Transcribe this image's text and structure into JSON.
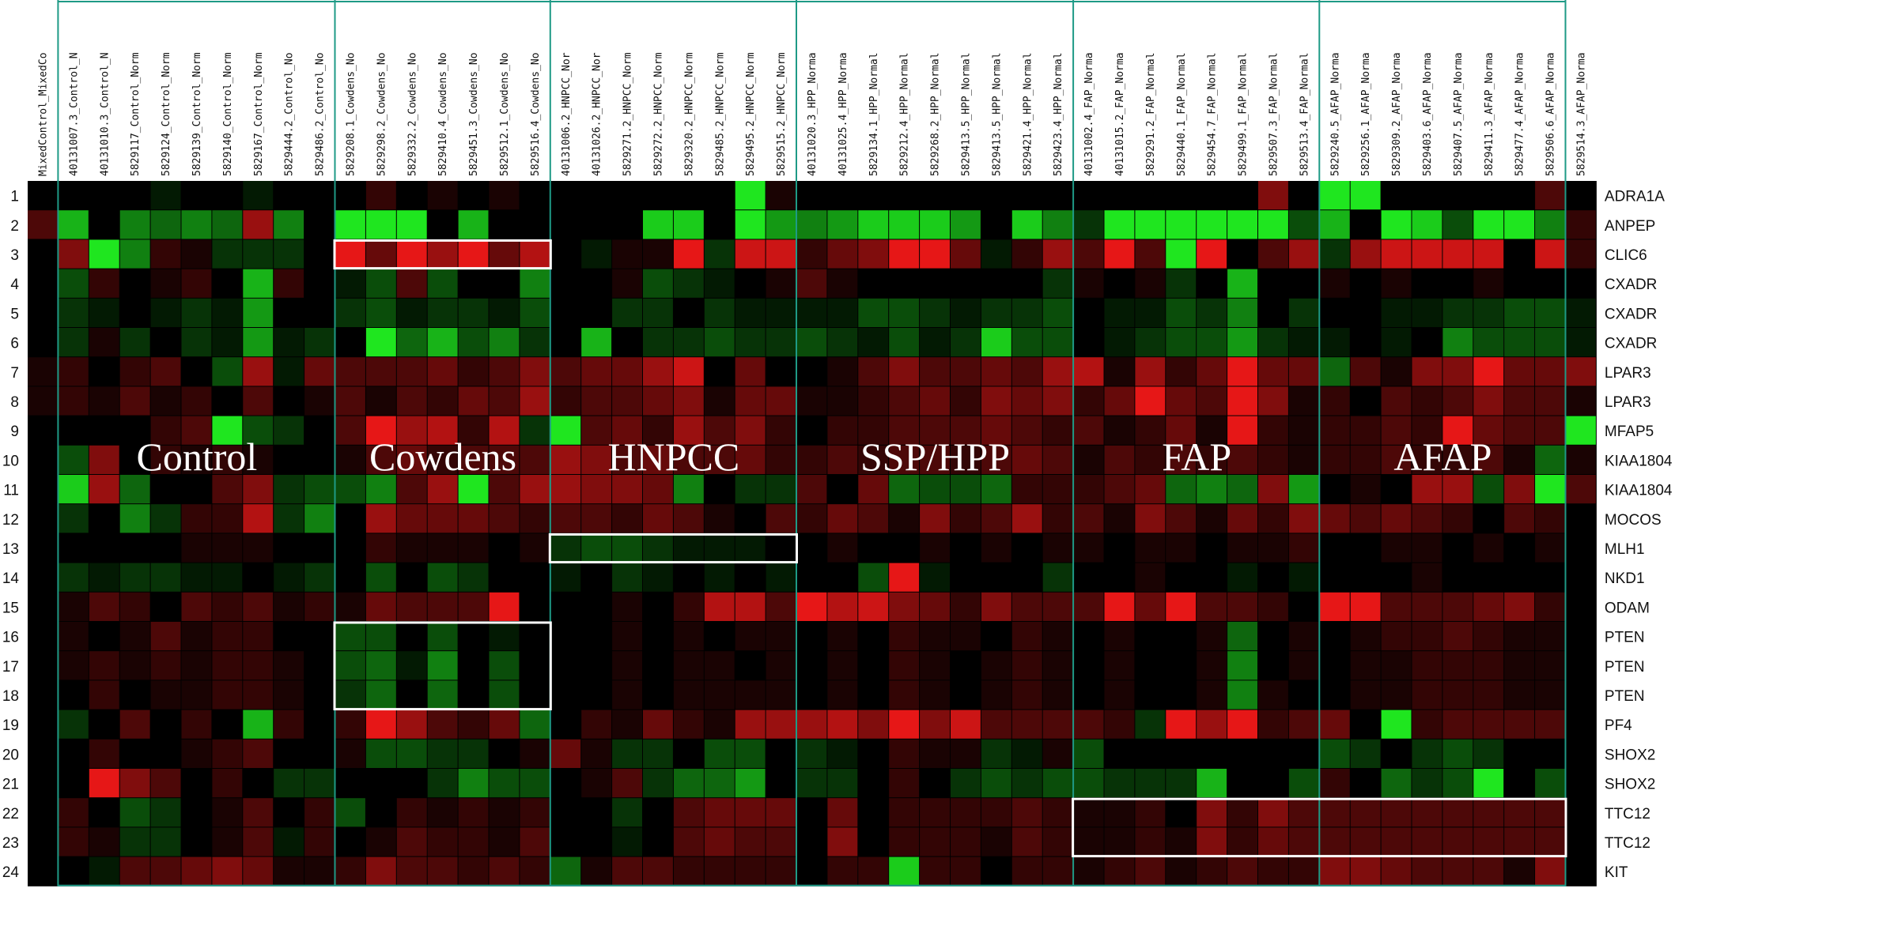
{
  "chart_data": {
    "type": "heatmap",
    "color_scale": {
      "low": "#22ff22",
      "mid": "#000000",
      "high": "#ff1a1a",
      "range": [
        -1,
        1
      ]
    },
    "columns": [
      "MixedControl_MixedCo",
      "40131007.3_Control_N",
      "40131010.3_Control_N",
      "5829117_Control_Norm",
      "5829124_Control_Norm",
      "5829139_Control_Norm",
      "5829140_Control_Norm",
      "5829167_Control_Norm",
      "5829444.2_Control_No",
      "5829486.2_Control_No",
      "5829208.1_Cowdens_No",
      "5829298.2_Cowdens_No",
      "5829332.2_Cowdens_No",
      "5829410.4_Cowdens_No",
      "5829451.3_Cowdens_No",
      "5829512.1_Cowdens_No",
      "5829516.4_Cowdens_No",
      "40131006.2_HNPCC_Nor",
      "40131026.2_HNPCC_Nor",
      "5829271.2_HNPCC_Norm",
      "5829272.2_HNPCC_Norm",
      "5829320.2_HNPCC_Norm",
      "5829485.2_HNPCC_Norm",
      "5829495.2_HNPCC_Norm",
      "5829515.2_HNPCC_Norm",
      "40131020.3_HPP_Norma",
      "40131025.4_HPP_Norma",
      "5829134.1_HPP_Normal",
      "5829212.4_HPP_Normal",
      "5829268.2_HPP_Normal",
      "5829413.5_HPP_Normal",
      "5829413.5_HPP_Normal",
      "5829421.4_HPP_Normal",
      "5829423.4_HPP_Normal",
      "40131002.4_FAP_Norma",
      "40131015.2_FAP_Norma",
      "5829291.2_FAP_Normal",
      "5829440.1_FAP_Normal",
      "5829454.7_FAP_Normal",
      "5829499.1_FAP_Normal",
      "5829507.3_FAP_Normal",
      "5829513.4_FAP_Normal",
      "5829240.5_AFAP_Norma",
      "5829256.1_AFAP_Norma",
      "5829309.2_AFAP_Norma",
      "5829403.6_AFAP_Norma",
      "5829407.5_AFAP_Norma",
      "5829411.3_AFAP_Norma",
      "5829477.4_AFAP_Norma",
      "5829506.6_AFAP_Norma",
      "5829514.3_AFAP_Norma"
    ],
    "row_numbers": [
      "1",
      "2",
      "3",
      "4",
      "5",
      "6",
      "7",
      "8",
      "9",
      "10",
      "11",
      "12",
      "13",
      "14",
      "15",
      "16",
      "17",
      "18",
      "19",
      "20",
      "21",
      "22",
      "23",
      "24"
    ],
    "genes": [
      "ADRA1A",
      "ANPEP",
      "CLIC6",
      "CXADR",
      "CXADR",
      "CXADR",
      "LPAR3",
      "LPAR3",
      "MFAP5",
      "KIAA1804",
      "KIAA1804",
      "MOCOS",
      "MLH1",
      "NKD1",
      "ODAM",
      "PTEN",
      "PTEN",
      "PTEN",
      "PF4",
      "SHOX2",
      "SHOX2",
      "TTC12",
      "TTC12",
      "KIT"
    ],
    "groups": [
      {
        "name": "Control",
        "start_col": 1,
        "end_col": 9
      },
      {
        "name": "Cowdens",
        "start_col": 10,
        "end_col": 16
      },
      {
        "name": "HNPCC",
        "start_col": 17,
        "end_col": 24
      },
      {
        "name": "SSP/HPP",
        "start_col": 25,
        "end_col": 33
      },
      {
        "name": "FAP",
        "start_col": 34,
        "end_col": 41
      },
      {
        "name": "AFAP",
        "start_col": 42,
        "end_col": 49
      }
    ],
    "highlights": [
      {
        "row_start": 3,
        "row_end": 3,
        "col_start": 10,
        "col_end": 16
      },
      {
        "row_start": 13,
        "row_end": 13,
        "col_start": 17,
        "col_end": 24
      },
      {
        "row_start": 16,
        "row_end": 18,
        "col_start": 10,
        "col_end": 16
      },
      {
        "row_start": 22,
        "row_end": 23,
        "col_start": 34,
        "col_end": 49
      }
    ],
    "values": [
      [
        0,
        0,
        0,
        0,
        -0.1,
        0,
        0,
        -0.1,
        0,
        0,
        0,
        0.2,
        0,
        0.1,
        0,
        0.1,
        0,
        0,
        0,
        0,
        0,
        0,
        0,
        -0.9,
        0.1,
        0,
        0,
        0,
        0,
        0,
        0,
        0,
        0,
        0,
        0,
        0,
        0,
        0,
        0,
        0,
        0.5,
        0,
        -0.9,
        -0.9,
        0,
        0,
        0,
        0,
        0,
        0.3,
        0
      ],
      [
        0.3,
        -0.7,
        0,
        -0.5,
        -0.4,
        -0.5,
        -0.4,
        0.6,
        -0.5,
        0,
        -0.9,
        -0.9,
        -0.9,
        0,
        -0.7,
        0,
        0,
        0,
        0,
        0,
        -0.8,
        -0.8,
        0,
        -0.9,
        -0.6,
        -0.5,
        -0.6,
        -0.8,
        -0.8,
        -0.8,
        -0.6,
        0,
        -0.8,
        -0.5,
        -0.2,
        -0.9,
        -0.9,
        -0.9,
        -0.9,
        -0.9,
        -0.9,
        -0.3,
        -0.7,
        0,
        -0.9,
        -0.8,
        -0.3,
        -0.9,
        -0.9,
        -0.5,
        0.2
      ],
      [
        0,
        0.5,
        -0.9,
        -0.5,
        0.2,
        0.1,
        -0.2,
        -0.2,
        -0.2,
        0,
        0.9,
        0.4,
        0.9,
        0.6,
        0.9,
        0.4,
        0.7,
        0,
        -0.1,
        0.1,
        0.1,
        0.9,
        -0.2,
        0.8,
        0.8,
        0.2,
        0.4,
        0.5,
        0.9,
        0.9,
        0.4,
        -0.1,
        0.2,
        0.6,
        0.3,
        0.9,
        0.3,
        -0.9,
        0.9,
        0,
        0.3,
        0.6,
        -0.2,
        0.6,
        0.8,
        0.8,
        0.8,
        0.8,
        0,
        0.8,
        0.2
      ],
      [
        0,
        -0.3,
        0.2,
        0,
        0.1,
        0.2,
        0,
        -0.7,
        0.2,
        0,
        -0.1,
        -0.3,
        0.3,
        -0.3,
        0,
        0,
        -0.5,
        0,
        0,
        0.1,
        -0.3,
        -0.2,
        -0.1,
        0,
        0.1,
        0.3,
        0.1,
        0,
        0,
        0,
        0,
        0,
        0,
        -0.2,
        0.1,
        0,
        0.1,
        -0.2,
        0,
        -0.7,
        0,
        0,
        0.1,
        0,
        0.1,
        0,
        0,
        0.1,
        0,
        0,
        0
      ],
      [
        0,
        -0.2,
        -0.1,
        0,
        -0.1,
        -0.2,
        -0.1,
        -0.6,
        0,
        0,
        -0.2,
        -0.3,
        -0.1,
        -0.2,
        -0.2,
        -0.1,
        -0.3,
        0,
        0,
        -0.2,
        -0.2,
        0,
        -0.2,
        -0.1,
        -0.1,
        -0.1,
        -0.1,
        -0.3,
        -0.3,
        -0.2,
        -0.1,
        -0.2,
        -0.2,
        -0.3,
        0,
        -0.1,
        -0.1,
        -0.3,
        -0.2,
        -0.5,
        0,
        -0.2,
        0,
        0,
        -0.1,
        -0.1,
        -0.2,
        -0.2,
        -0.3,
        -0.3,
        -0.1
      ],
      [
        0,
        -0.2,
        0.1,
        -0.2,
        0,
        -0.2,
        -0.1,
        -0.6,
        -0.1,
        -0.2,
        0,
        -0.9,
        -0.4,
        -0.7,
        -0.3,
        -0.5,
        -0.2,
        0,
        -0.7,
        0,
        -0.2,
        -0.2,
        -0.3,
        -0.2,
        -0.2,
        -0.3,
        -0.2,
        -0.1,
        -0.3,
        -0.1,
        -0.2,
        -0.8,
        -0.3,
        -0.3,
        0,
        -0.1,
        -0.2,
        -0.3,
        -0.3,
        -0.6,
        -0.2,
        -0.1,
        -0.1,
        0,
        -0.1,
        0,
        -0.5,
        -0.3,
        -0.3,
        -0.3,
        -0.1
      ],
      [
        0.1,
        0.2,
        0,
        0.2,
        0.3,
        0,
        -0.3,
        0.6,
        -0.1,
        0.4,
        0.3,
        0.3,
        0.3,
        0.4,
        0.2,
        0.3,
        0.5,
        0.3,
        0.4,
        0.4,
        0.6,
        0.8,
        0,
        0.4,
        0,
        0,
        0.1,
        0.3,
        0.5,
        0.3,
        0.3,
        0.4,
        0.3,
        0.6,
        0.7,
        0.1,
        0.6,
        0.2,
        0.4,
        0.9,
        0.4,
        0.4,
        -0.4,
        0.3,
        0.1,
        0.5,
        0.5,
        0.9,
        0.4,
        0.4,
        0.5
      ],
      [
        0.1,
        0.2,
        0.1,
        0.3,
        0.1,
        0.2,
        0,
        0.3,
        0,
        0.1,
        0.3,
        0.1,
        0.3,
        0.2,
        0.4,
        0.3,
        0.6,
        0.2,
        0.3,
        0.3,
        0.4,
        0.5,
        0.1,
        0.4,
        0.4,
        0.1,
        0.1,
        0.2,
        0.3,
        0.4,
        0.2,
        0.5,
        0.4,
        0.5,
        0.2,
        0.4,
        0.9,
        0.4,
        0.3,
        0.9,
        0.5,
        0.1,
        0.2,
        0,
        0.3,
        0.2,
        0.3,
        0.5,
        0.3,
        0.3,
        0.1
      ],
      [
        0,
        0,
        0,
        0,
        0.2,
        0.3,
        -0.9,
        -0.3,
        -0.2,
        0,
        0.3,
        0.9,
        0.6,
        0.7,
        0.2,
        0.7,
        -0.2,
        -0.9,
        0.3,
        0.4,
        0.2,
        0.6,
        0.3,
        0.5,
        0.2,
        0,
        0.2,
        0.2,
        0.3,
        0.3,
        0.3,
        0.4,
        0.3,
        0.2,
        0.3,
        0.1,
        0.2,
        0.4,
        0.1,
        0.9,
        0.2,
        0.1,
        0.2,
        0.2,
        0.3,
        0.2,
        0.9,
        0.4,
        0.3,
        0.3,
        -0.9
      ],
      [
        0,
        -0.3,
        0.5,
        0,
        0.2,
        0.1,
        0.2,
        0.1,
        0,
        0,
        0.1,
        0.3,
        0.4,
        0.2,
        0.3,
        0.3,
        0.3,
        0.6,
        0.5,
        0.3,
        0.4,
        0.3,
        0.3,
        0.4,
        0.2,
        0.2,
        0.3,
        0.2,
        0.3,
        0.3,
        0.2,
        0.3,
        0.4,
        0.3,
        0.1,
        0.3,
        0.2,
        0.3,
        0.2,
        0.3,
        0.2,
        0.1,
        0.2,
        0.2,
        0.3,
        0.2,
        0.2,
        0.3,
        0.1,
        -0.4,
        0.1
      ],
      [
        0,
        -0.8,
        0.6,
        -0.4,
        0,
        0,
        0.3,
        0.5,
        -0.2,
        -0.3,
        -0.3,
        -0.5,
        0.3,
        0.6,
        -0.9,
        0.3,
        0.6,
        0.6,
        0.5,
        0.5,
        0.4,
        -0.5,
        0,
        -0.2,
        -0.2,
        0.3,
        0,
        0.4,
        -0.4,
        -0.3,
        -0.3,
        -0.4,
        0.2,
        0.2,
        0.2,
        0.3,
        0.4,
        -0.4,
        -0.5,
        -0.4,
        0.5,
        -0.6,
        0,
        0.1,
        0,
        0.6,
        0.6,
        -0.3,
        0.5,
        -0.9,
        0.3
      ],
      [
        0,
        -0.2,
        0,
        -0.5,
        -0.2,
        0.2,
        0.2,
        0.7,
        -0.2,
        -0.5,
        0,
        0.6,
        0.4,
        0.4,
        0.4,
        0.3,
        0.2,
        0.3,
        0.3,
        0.2,
        0.4,
        0.3,
        0.1,
        0,
        0.3,
        0.2,
        0.4,
        0.3,
        0.1,
        0.5,
        0.2,
        0.3,
        0.6,
        0.2,
        0.3,
        0.1,
        0.5,
        0.3,
        0.1,
        0.4,
        0.2,
        0.5,
        0.4,
        0.3,
        0.4,
        0.3,
        0.2,
        0,
        0.3,
        0.2,
        0
      ],
      [
        0,
        0,
        0,
        0,
        0,
        0.1,
        0.1,
        0.1,
        0,
        0,
        0,
        0.2,
        0.1,
        0.1,
        0.1,
        0,
        0.1,
        -0.2,
        -0.3,
        -0.3,
        -0.2,
        -0.1,
        -0.1,
        -0.1,
        0,
        0,
        0.1,
        0,
        0,
        0.1,
        0,
        0.1,
        0,
        0.1,
        0.1,
        0,
        0.1,
        0.1,
        0,
        0.1,
        0.1,
        0.2,
        0,
        0,
        0.1,
        0.1,
        0,
        0.1,
        0,
        0.1,
        0
      ],
      [
        0,
        -0.2,
        -0.1,
        -0.2,
        -0.2,
        -0.1,
        -0.1,
        0,
        -0.1,
        -0.2,
        0,
        -0.3,
        0,
        -0.3,
        -0.2,
        0,
        0,
        -0.1,
        0,
        -0.2,
        -0.1,
        0,
        -0.1,
        0,
        -0.1,
        0,
        0,
        -0.3,
        0.9,
        -0.1,
        0,
        0,
        0,
        -0.2,
        0,
        0,
        0.1,
        0,
        0,
        -0.1,
        0,
        -0.1,
        0,
        0,
        0,
        0.1,
        0,
        0,
        0,
        0,
        0
      ],
      [
        0,
        0.1,
        0.3,
        0.2,
        0,
        0.3,
        0.2,
        0.3,
        0.1,
        0.2,
        0.1,
        0.4,
        0.3,
        0.3,
        0.3,
        0.9,
        0,
        0,
        0,
        0.1,
        0,
        0.2,
        0.7,
        0.7,
        0.3,
        0.9,
        0.7,
        0.8,
        0.5,
        0.4,
        0.2,
        0.5,
        0.3,
        0.3,
        0.3,
        0.9,
        0.4,
        0.9,
        0.3,
        0.3,
        0.2,
        0,
        0.9,
        0.9,
        0.3,
        0.3,
        0.3,
        0.4,
        0.5,
        0.2,
        0
      ],
      [
        0,
        0.1,
        0,
        0.1,
        0.3,
        0.1,
        0.2,
        0.2,
        0,
        0,
        -0.3,
        -0.3,
        0,
        -0.3,
        0,
        -0.1,
        0,
        0,
        0,
        0.1,
        0,
        0.1,
        0,
        0.1,
        0.1,
        0,
        0.1,
        0,
        0.2,
        0.1,
        0.1,
        0,
        0.2,
        0.1,
        0,
        0.1,
        0,
        0,
        0.1,
        -0.4,
        0,
        0.1,
        0,
        0.1,
        0.2,
        0.2,
        0.3,
        0.2,
        0.1,
        0.1,
        0
      ],
      [
        0,
        0.1,
        0.2,
        0.1,
        0.2,
        0.1,
        0.2,
        0.2,
        0.1,
        0,
        -0.3,
        -0.4,
        -0.1,
        -0.5,
        0,
        -0.3,
        0,
        0,
        0,
        0.1,
        0,
        0.1,
        0.1,
        0,
        0.1,
        0,
        0.1,
        0,
        0.2,
        0.1,
        0,
        0.1,
        0.2,
        0.1,
        0,
        0.1,
        0,
        0,
        0.1,
        -0.5,
        0,
        0.1,
        0,
        0.1,
        0.1,
        0.2,
        0.2,
        0.2,
        0.1,
        0.1,
        0
      ],
      [
        0,
        0,
        0.2,
        0,
        0.1,
        0.1,
        0.2,
        0.2,
        0.1,
        0,
        -0.2,
        -0.4,
        0,
        -0.4,
        0,
        -0.3,
        0,
        0,
        0,
        0.1,
        0,
        0.1,
        0.1,
        0.1,
        0.1,
        0,
        0.1,
        0,
        0.2,
        0.1,
        0,
        0.1,
        0.2,
        0.1,
        0,
        0.1,
        0,
        0,
        0.1,
        -0.5,
        0.1,
        0,
        0,
        0.1,
        0.1,
        0.2,
        0.2,
        0.2,
        0.1,
        0.1,
        0
      ],
      [
        0,
        -0.2,
        0,
        0.3,
        0,
        0.2,
        0,
        -0.7,
        0.2,
        0,
        0.2,
        0.9,
        0.6,
        0.3,
        0.2,
        0.4,
        -0.4,
        0,
        0.2,
        0.1,
        0.4,
        0.2,
        0.1,
        0.6,
        0.6,
        0.6,
        0.7,
        0.5,
        0.9,
        0.5,
        0.8,
        0.3,
        0.3,
        0.3,
        0.3,
        0.2,
        -0.2,
        0.9,
        0.6,
        0.9,
        0.2,
        0.3,
        0.4,
        0,
        -0.9,
        0.2,
        0.3,
        0.3,
        0.3,
        0.3,
        0
      ],
      [
        0,
        0,
        0.2,
        0,
        0,
        0.1,
        0.2,
        0.3,
        0,
        0,
        0.1,
        -0.3,
        -0.3,
        -0.2,
        -0.2,
        0,
        0.1,
        0.4,
        0.1,
        -0.2,
        -0.2,
        0,
        -0.3,
        -0.3,
        0,
        -0.2,
        -0.1,
        0,
        0.2,
        0.1,
        0.1,
        -0.2,
        -0.1,
        0.1,
        -0.3,
        0,
        0,
        0,
        0,
        0,
        0,
        0,
        -0.3,
        -0.2,
        0,
        -0.2,
        -0.3,
        -0.2,
        0,
        0,
        0
      ],
      [
        0,
        0,
        0.9,
        0.5,
        0.3,
        0,
        0.2,
        0,
        -0.2,
        -0.2,
        0,
        0,
        0,
        -0.2,
        -0.5,
        -0.3,
        -0.3,
        0,
        0.1,
        0.3,
        -0.2,
        -0.4,
        -0.4,
        -0.6,
        0,
        -0.2,
        -0.2,
        0,
        0.2,
        0,
        -0.2,
        -0.3,
        -0.2,
        -0.3,
        -0.3,
        -0.2,
        -0.2,
        -0.2,
        -0.7,
        0,
        0,
        -0.3,
        0.2,
        0,
        -0.4,
        -0.2,
        -0.3,
        -0.9,
        0,
        -0.3,
        0
      ],
      [
        0,
        0.2,
        0,
        -0.3,
        -0.2,
        0,
        0.1,
        0.3,
        0,
        0.2,
        -0.3,
        0,
        0.2,
        0.1,
        0.2,
        0.1,
        0.2,
        0,
        0,
        -0.2,
        0,
        0.3,
        0.4,
        0.4,
        0.4,
        0,
        0.4,
        0,
        0.2,
        0.2,
        0.2,
        0.2,
        0.3,
        0.2,
        0.1,
        0.1,
        0.2,
        0,
        0.5,
        0.2,
        0.5,
        0.3,
        0.3,
        0.3,
        0.3,
        0.3,
        0.3,
        0.3,
        0.3,
        0.3,
        0
      ],
      [
        0,
        0.2,
        0.1,
        -0.2,
        -0.2,
        0,
        0.1,
        0.3,
        -0.1,
        0.2,
        0,
        0.1,
        0.3,
        0.2,
        0.2,
        0.1,
        0.3,
        0,
        0,
        -0.1,
        0,
        0.3,
        0.4,
        0.3,
        0.3,
        0,
        0.5,
        0,
        0.2,
        0.2,
        0.2,
        0.1,
        0.3,
        0.2,
        0.1,
        0.1,
        0.2,
        0.1,
        0.5,
        0.2,
        0.4,
        0.3,
        0.3,
        0.3,
        0.3,
        0.3,
        0.3,
        0.3,
        0.3,
        0.3,
        0
      ],
      [
        0,
        0,
        -0.1,
        0.3,
        0.3,
        0.4,
        0.5,
        0.4,
        0.1,
        0.1,
        0.2,
        0.5,
        0.3,
        0.3,
        0.2,
        0.3,
        0.2,
        -0.4,
        0.1,
        0.3,
        0.3,
        0.2,
        0.2,
        0.2,
        0.2,
        0,
        0.2,
        0.2,
        -0.8,
        0.2,
        0.2,
        0,
        0.2,
        0.2,
        0.1,
        0.2,
        0.3,
        0.1,
        0.2,
        0.3,
        0.2,
        0.2,
        0.5,
        0.5,
        0.4,
        0.3,
        0.3,
        0.3,
        0.1,
        0.5,
        0
      ]
    ]
  }
}
